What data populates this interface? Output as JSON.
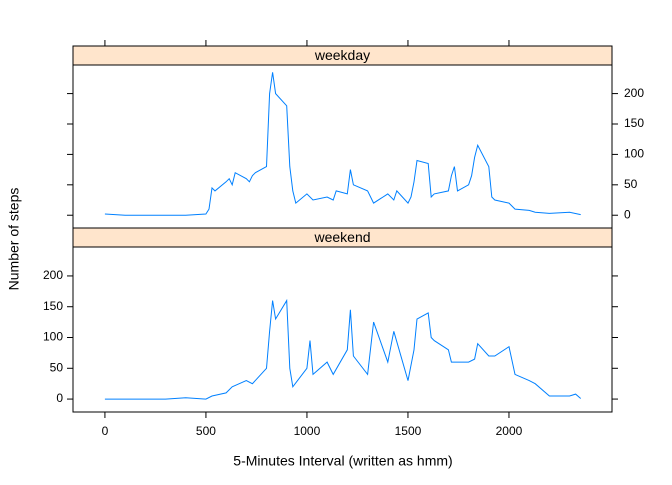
{
  "chart_data": {
    "type": "line",
    "xlabel": "5-Minutes Interval (written as hmm)",
    "ylabel": "Number of steps",
    "xlim": [
      -158,
      2510
    ],
    "xticks": [
      0,
      500,
      1000,
      1500,
      2000
    ],
    "ylim": [
      -21,
      247
    ],
    "yticks": [
      0,
      50,
      100,
      150,
      200
    ],
    "color": "#0080ff",
    "strip_color": "#ffe5cc",
    "panels": [
      {
        "title": "weekday",
        "x": [
          0,
          100,
          200,
          300,
          400,
          500,
          515,
          530,
          545,
          600,
          615,
          630,
          645,
          700,
          715,
          730,
          745,
          800,
          815,
          830,
          845,
          900,
          915,
          930,
          945,
          1000,
          1030,
          1100,
          1130,
          1145,
          1200,
          1215,
          1230,
          1300,
          1330,
          1400,
          1430,
          1445,
          1500,
          1515,
          1530,
          1545,
          1600,
          1615,
          1630,
          1700,
          1715,
          1730,
          1745,
          1800,
          1815,
          1830,
          1845,
          1900,
          1915,
          1930,
          2000,
          2030,
          2100,
          2130,
          2200,
          2300,
          2355
        ],
        "values": [
          2,
          0,
          0,
          0,
          0,
          2,
          10,
          45,
          40,
          55,
          60,
          50,
          70,
          60,
          55,
          65,
          70,
          80,
          200,
          235,
          200,
          180,
          80,
          40,
          20,
          35,
          25,
          30,
          25,
          40,
          35,
          75,
          50,
          40,
          20,
          35,
          25,
          40,
          20,
          30,
          55,
          90,
          85,
          30,
          35,
          40,
          65,
          80,
          40,
          50,
          65,
          95,
          115,
          80,
          30,
          25,
          20,
          10,
          8,
          5,
          3,
          5,
          1
        ]
      },
      {
        "title": "weekend",
        "x": [
          0,
          100,
          200,
          300,
          400,
          500,
          530,
          600,
          630,
          700,
          730,
          800,
          815,
          830,
          845,
          900,
          915,
          930,
          1000,
          1015,
          1030,
          1100,
          1130,
          1200,
          1215,
          1230,
          1300,
          1330,
          1400,
          1430,
          1500,
          1530,
          1545,
          1600,
          1615,
          1630,
          1700,
          1715,
          1730,
          1800,
          1830,
          1845,
          1900,
          1930,
          2000,
          2030,
          2100,
          2130,
          2200,
          2300,
          2330,
          2355
        ],
        "values": [
          0,
          0,
          0,
          0,
          2,
          0,
          5,
          10,
          20,
          30,
          25,
          50,
          110,
          160,
          130,
          160,
          50,
          20,
          50,
          95,
          40,
          60,
          40,
          80,
          145,
          70,
          40,
          125,
          60,
          110,
          30,
          80,
          130,
          140,
          100,
          95,
          80,
          60,
          60,
          60,
          65,
          90,
          70,
          70,
          85,
          40,
          30,
          25,
          5,
          5,
          8,
          1
        ]
      }
    ]
  }
}
